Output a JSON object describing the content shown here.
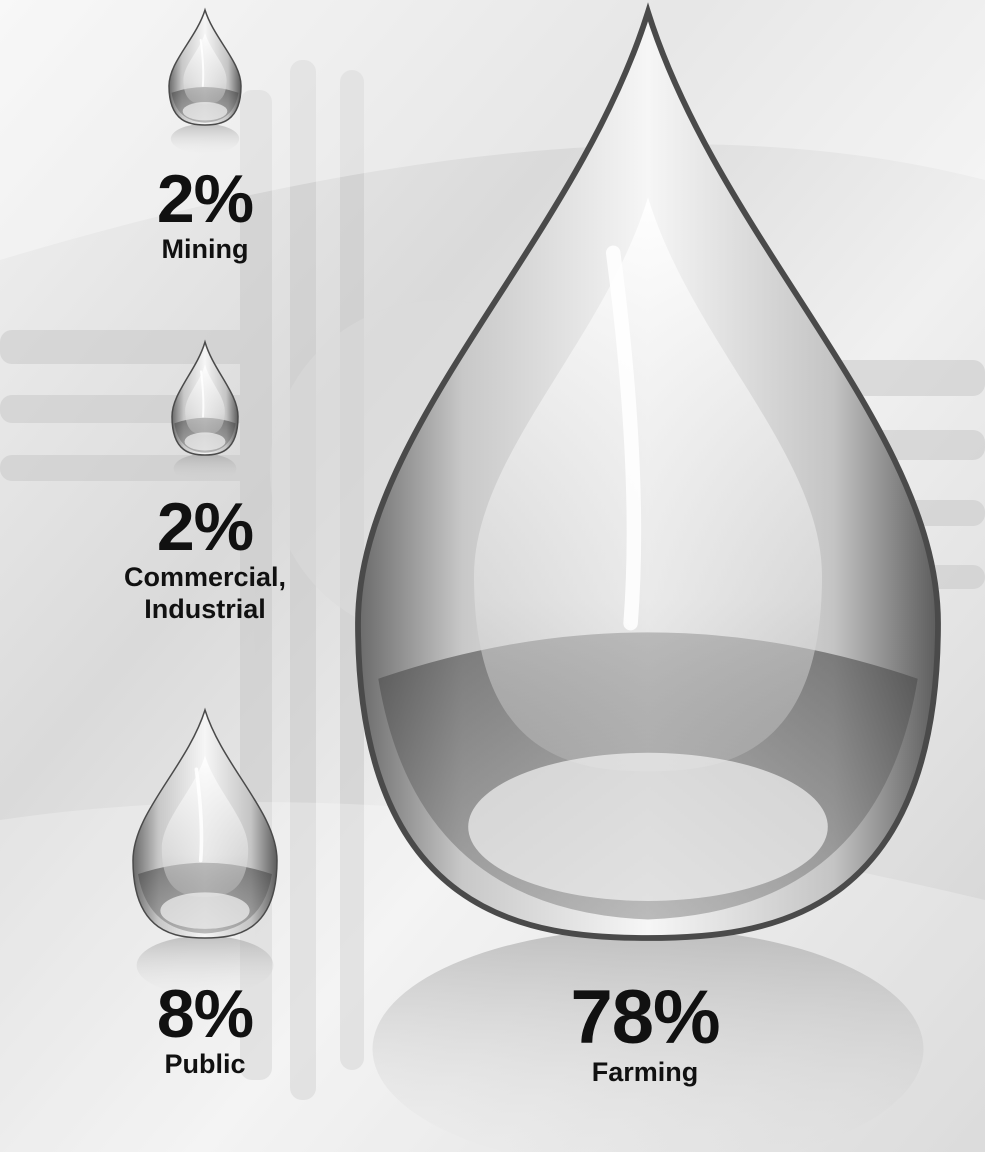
{
  "chart_data": {
    "type": "pie",
    "categories": [
      "Mining",
      "Commercial, Industrial",
      "Public",
      "Farming"
    ],
    "values": [
      2,
      2,
      8,
      78
    ],
    "unit": "%",
    "labels": [
      {
        "value": "2%",
        "name": "Mining"
      },
      {
        "value": "2%",
        "line1": "Commercial,",
        "line2": "Industrial"
      },
      {
        "value": "8%",
        "name": "Public"
      },
      {
        "value": "78%",
        "name": "Farming"
      }
    ]
  }
}
